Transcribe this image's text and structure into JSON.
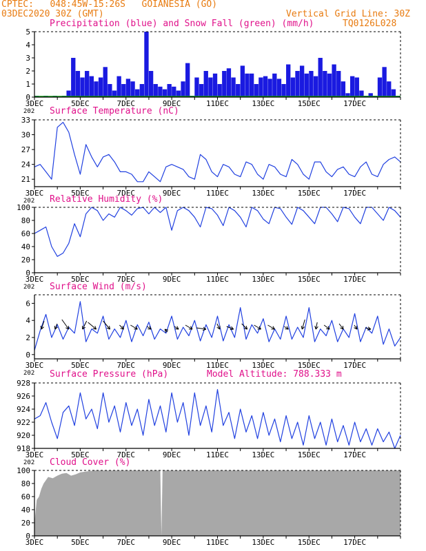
{
  "header": {
    "line1": "CPTEC:   048:45W-15:26S   GOIANESIA (GO)",
    "line2": "03DEC2020 30Z (GMT)",
    "grid_note": "Vertical Grid Line: 30Z",
    "model_code": "TQ0126L028",
    "accent_color": "#e87b10",
    "title_color": "#e0108a",
    "line_color": "#2040e0"
  },
  "x_axis": {
    "tick_labels": [
      "3DEC",
      "5DEC",
      "7DEC",
      "9DEC",
      "11DEC",
      "13DEC",
      "15DEC",
      "17DEC"
    ],
    "start_day": 3,
    "end_day": 19,
    "cut_label": "202"
  },
  "chart_data": [
    {
      "id": "precip",
      "type": "bar",
      "title": "Precipitation (blue) and Snow Fall (green) (mm/h)",
      "ylim": [
        0,
        5
      ],
      "yticks": [
        0,
        1,
        2,
        3,
        4,
        5
      ],
      "grid": false,
      "series": [
        {
          "name": "Precipitation",
          "color": "#1a1ae0",
          "points": [
            [
              3.0,
              0.1
            ],
            [
              3.2,
              0.05
            ],
            [
              3.4,
              0.1
            ],
            [
              3.6,
              0.05
            ],
            [
              3.8,
              0.1
            ],
            [
              4.0,
              0.05
            ],
            [
              4.2,
              0.1
            ],
            [
              4.4,
              0.5
            ],
            [
              4.6,
              3.0
            ],
            [
              4.8,
              2.0
            ],
            [
              5.0,
              1.5
            ],
            [
              5.2,
              2.0
            ],
            [
              5.4,
              1.6
            ],
            [
              5.6,
              1.2
            ],
            [
              5.8,
              1.5
            ],
            [
              6.0,
              2.3
            ],
            [
              6.2,
              1.0
            ],
            [
              6.4,
              0.5
            ],
            [
              6.6,
              1.6
            ],
            [
              6.8,
              1.0
            ],
            [
              7.0,
              1.4
            ],
            [
              7.2,
              1.2
            ],
            [
              7.4,
              0.6
            ],
            [
              7.6,
              1.0
            ],
            [
              7.8,
              5.0
            ],
            [
              8.0,
              2.0
            ],
            [
              8.2,
              1.0
            ],
            [
              8.4,
              0.8
            ],
            [
              8.6,
              0.6
            ],
            [
              8.8,
              1.0
            ],
            [
              9.0,
              0.8
            ],
            [
              9.2,
              0.5
            ],
            [
              9.4,
              1.2
            ],
            [
              9.6,
              2.6
            ],
            [
              9.8,
              0.1
            ],
            [
              10.0,
              1.5
            ],
            [
              10.2,
              1.0
            ],
            [
              10.4,
              2.0
            ],
            [
              10.6,
              1.5
            ],
            [
              10.8,
              1.8
            ],
            [
              11.0,
              1.0
            ],
            [
              11.2,
              2.0
            ],
            [
              11.4,
              2.2
            ],
            [
              11.6,
              1.5
            ],
            [
              11.8,
              1.0
            ],
            [
              12.0,
              2.4
            ],
            [
              12.2,
              1.8
            ],
            [
              12.4,
              1.8
            ],
            [
              12.6,
              1.0
            ],
            [
              12.8,
              1.5
            ],
            [
              13.0,
              1.6
            ],
            [
              13.2,
              1.4
            ],
            [
              13.4,
              1.8
            ],
            [
              13.6,
              1.4
            ],
            [
              13.8,
              1.0
            ],
            [
              14.0,
              2.5
            ],
            [
              14.2,
              1.5
            ],
            [
              14.4,
              2.0
            ],
            [
              14.6,
              2.4
            ],
            [
              14.8,
              1.8
            ],
            [
              15.0,
              2.0
            ],
            [
              15.2,
              1.6
            ],
            [
              15.4,
              3.0
            ],
            [
              15.6,
              2.0
            ],
            [
              15.8,
              1.8
            ],
            [
              16.0,
              2.5
            ],
            [
              16.2,
              2.0
            ],
            [
              16.4,
              1.2
            ],
            [
              16.6,
              0.3
            ],
            [
              16.8,
              1.6
            ],
            [
              17.0,
              1.5
            ],
            [
              17.2,
              0.5
            ],
            [
              17.4,
              0.1
            ],
            [
              17.6,
              0.3
            ],
            [
              17.8,
              0.1
            ],
            [
              18.0,
              1.5
            ],
            [
              18.2,
              2.3
            ],
            [
              18.4,
              1.2
            ],
            [
              18.6,
              0.6
            ],
            [
              18.8,
              0.1
            ]
          ]
        },
        {
          "name": "Snow Fall",
          "color": "#10a010",
          "points": []
        }
      ]
    },
    {
      "id": "temp",
      "type": "line",
      "title": "Surface Temperature (nC)",
      "ylim": [
        19.5,
        33
      ],
      "yticks": [
        21,
        24,
        27,
        30,
        33
      ],
      "grid": false,
      "x": [
        3.0,
        3.25,
        3.5,
        3.75,
        4.0,
        4.25,
        4.5,
        4.75,
        5.0,
        5.25,
        5.5,
        5.75,
        6.0,
        6.25,
        6.5,
        6.75,
        7.0,
        7.25,
        7.5,
        7.75,
        8.0,
        8.25,
        8.5,
        8.75,
        9.0,
        9.25,
        9.5,
        9.75,
        10.0,
        10.25,
        10.5,
        10.75,
        11.0,
        11.25,
        11.5,
        11.75,
        12.0,
        12.25,
        12.5,
        12.75,
        13.0,
        13.25,
        13.5,
        13.75,
        14.0,
        14.25,
        14.5,
        14.75,
        15.0,
        15.25,
        15.5,
        15.75,
        16.0,
        16.25,
        16.5,
        16.75,
        17.0,
        17.25,
        17.5,
        17.75,
        18.0,
        18.25,
        18.5,
        18.75,
        19.0
      ],
      "y": [
        23.5,
        24.0,
        22.5,
        21.0,
        31.5,
        32.5,
        30.5,
        26.0,
        22.0,
        28.0,
        25.5,
        23.5,
        25.5,
        26.0,
        24.5,
        22.5,
        22.5,
        22.0,
        20.5,
        20.5,
        22.5,
        21.5,
        20.5,
        23.5,
        24.0,
        23.5,
        23.0,
        21.5,
        21.0,
        26.0,
        25.0,
        22.5,
        21.5,
        24.0,
        23.5,
        22.0,
        21.5,
        24.5,
        24.0,
        22.0,
        21.0,
        24.0,
        23.5,
        22.0,
        21.5,
        25.0,
        24.0,
        22.0,
        21.0,
        24.5,
        24.5,
        22.5,
        21.5,
        23.0,
        23.5,
        22.0,
        21.5,
        23.5,
        24.5,
        22.0,
        21.5,
        24.0,
        25.0,
        25.5,
        24.5
      ]
    },
    {
      "id": "rh",
      "type": "line",
      "title": "Relative Humidity (%)",
      "ylim": [
        0,
        100
      ],
      "yticks": [
        0,
        20,
        40,
        60,
        80,
        100
      ],
      "grid": false,
      "x": [
        3.0,
        3.25,
        3.5,
        3.75,
        4.0,
        4.25,
        4.5,
        4.75,
        5.0,
        5.25,
        5.5,
        5.75,
        6.0,
        6.25,
        6.5,
        6.75,
        7.0,
        7.25,
        7.5,
        7.75,
        8.0,
        8.25,
        8.5,
        8.75,
        9.0,
        9.25,
        9.5,
        9.75,
        10.0,
        10.25,
        10.5,
        10.75,
        11.0,
        11.25,
        11.5,
        11.75,
        12.0,
        12.25,
        12.5,
        12.75,
        13.0,
        13.25,
        13.5,
        13.75,
        14.0,
        14.25,
        14.5,
        14.75,
        15.0,
        15.25,
        15.5,
        15.75,
        16.0,
        16.25,
        16.5,
        16.75,
        17.0,
        17.25,
        17.5,
        17.75,
        18.0,
        18.25,
        18.5,
        18.75,
        19.0
      ],
      "y": [
        60,
        65,
        70,
        40,
        25,
        30,
        45,
        75,
        55,
        90,
        100,
        95,
        80,
        90,
        85,
        100,
        95,
        88,
        98,
        100,
        90,
        100,
        92,
        100,
        65,
        95,
        100,
        95,
        85,
        70,
        100,
        98,
        88,
        72,
        100,
        95,
        85,
        70,
        100,
        95,
        82,
        75,
        100,
        98,
        85,
        74,
        100,
        95,
        85,
        75,
        100,
        100,
        90,
        78,
        100,
        98,
        85,
        75,
        100,
        100,
        90,
        80,
        100,
        95,
        85
      ]
    },
    {
      "id": "wind",
      "type": "line",
      "title": "Surface Wind (m/s)",
      "ylim": [
        -0.5,
        7
      ],
      "yticks": [
        0,
        2,
        4,
        6
      ],
      "grid": false,
      "x": [
        3.0,
        3.25,
        3.5,
        3.75,
        4.0,
        4.25,
        4.5,
        4.75,
        5.0,
        5.25,
        5.5,
        5.75,
        6.0,
        6.25,
        6.5,
        6.75,
        7.0,
        7.25,
        7.5,
        7.75,
        8.0,
        8.25,
        8.5,
        8.75,
        9.0,
        9.25,
        9.5,
        9.75,
        10.0,
        10.25,
        10.5,
        10.75,
        11.0,
        11.25,
        11.5,
        11.75,
        12.0,
        12.25,
        12.5,
        12.75,
        13.0,
        13.25,
        13.5,
        13.75,
        14.0,
        14.25,
        14.5,
        14.75,
        15.0,
        15.25,
        15.5,
        15.75,
        16.0,
        16.25,
        16.5,
        16.75,
        17.0,
        17.25,
        17.5,
        17.75,
        18.0,
        18.25,
        18.5,
        18.75,
        19.0
      ],
      "y": [
        0.5,
        2.8,
        4.7,
        2.0,
        3.5,
        1.8,
        3.2,
        2.5,
        6.2,
        1.5,
        3.0,
        2.5,
        4.5,
        1.8,
        3.0,
        2.0,
        4.0,
        1.5,
        3.5,
        2.2,
        3.8,
        1.8,
        3.0,
        2.5,
        4.5,
        1.8,
        3.2,
        2.2,
        4.0,
        1.6,
        3.5,
        2.0,
        4.5,
        1.6,
        3.5,
        2.0,
        5.5,
        1.8,
        3.5,
        2.5,
        4.2,
        1.5,
        3.0,
        1.8,
        4.5,
        1.8,
        3.2,
        2.0,
        5.5,
        1.5,
        3.0,
        2.2,
        4.0,
        1.5,
        3.0,
        2.0,
        4.8,
        1.5,
        3.2,
        2.5,
        4.5,
        1.2,
        3.0,
        1.0,
        2.0
      ]
    },
    {
      "id": "pressure",
      "type": "line",
      "title": "Surface Pressure (hPa)",
      "annotation": "Model Altitude: 788.333 m",
      "ylim": [
        918,
        928
      ],
      "yticks": [
        918,
        920,
        922,
        924,
        926,
        928
      ],
      "grid": false,
      "x": [
        3.0,
        3.25,
        3.5,
        3.75,
        4.0,
        4.25,
        4.5,
        4.75,
        5.0,
        5.25,
        5.5,
        5.75,
        6.0,
        6.25,
        6.5,
        6.75,
        7.0,
        7.25,
        7.5,
        7.75,
        8.0,
        8.25,
        8.5,
        8.75,
        9.0,
        9.25,
        9.5,
        9.75,
        10.0,
        10.25,
        10.5,
        10.75,
        11.0,
        11.25,
        11.5,
        11.75,
        12.0,
        12.25,
        12.5,
        12.75,
        13.0,
        13.25,
        13.5,
        13.75,
        14.0,
        14.25,
        14.5,
        14.75,
        15.0,
        15.25,
        15.5,
        15.75,
        16.0,
        16.25,
        16.5,
        16.75,
        17.0,
        17.25,
        17.5,
        17.75,
        18.0,
        18.25,
        18.5,
        18.75,
        19.0
      ],
      "y": [
        922.5,
        923.0,
        925.0,
        922.0,
        919.5,
        923.5,
        924.5,
        921.5,
        926.5,
        922.5,
        924.0,
        921.0,
        926.5,
        922.0,
        924.5,
        920.5,
        925.0,
        921.5,
        924.0,
        920.0,
        925.5,
        921.5,
        924.5,
        920.5,
        926.5,
        922.0,
        925.0,
        920.0,
        926.5,
        921.5,
        924.5,
        920.5,
        927.0,
        921.5,
        923.5,
        919.5,
        924.0,
        920.5,
        923.0,
        919.5,
        923.5,
        920.0,
        922.5,
        919.0,
        923.0,
        919.5,
        922.0,
        918.5,
        923.0,
        919.5,
        922.0,
        918.5,
        922.5,
        919.0,
        921.5,
        918.5,
        922.0,
        919.0,
        921.0,
        918.5,
        921.0,
        919.0,
        920.5,
        918.0,
        920.0
      ]
    },
    {
      "id": "cloud",
      "type": "area",
      "title": "Cloud Cover (%)",
      "ylim": [
        0,
        100
      ],
      "yticks": [
        0,
        20,
        40,
        60,
        80,
        100
      ],
      "grid": false,
      "color": "#a8a8a8",
      "x": [
        3.0,
        3.1,
        3.2,
        3.3,
        3.4,
        3.5,
        3.6,
        3.8,
        4.0,
        4.2,
        4.4,
        4.6,
        4.8,
        5.0,
        5.2,
        5.4,
        5.6,
        5.8,
        6.0,
        8.5,
        8.55,
        8.6,
        19.0
      ],
      "y": [
        20,
        55,
        60,
        72,
        80,
        85,
        90,
        88,
        92,
        95,
        96,
        92,
        94,
        97,
        98,
        99,
        100,
        100,
        100,
        100,
        0,
        100,
        100
      ]
    }
  ]
}
